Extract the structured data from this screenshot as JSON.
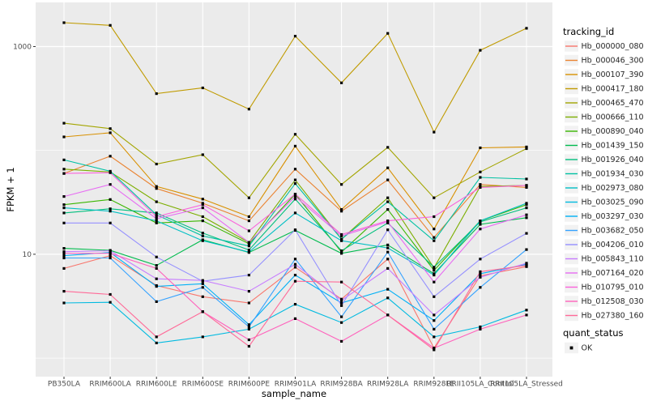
{
  "chart_data": {
    "type": "line",
    "title": "",
    "xlabel": "sample_name",
    "ylabel": "FPKM + 1",
    "values_are": "FPKM + 1 (log10 y scale)",
    "x_categories": [
      "PB350LA",
      "RRIM600LA",
      "RRIM600LE",
      "RRIM600SE",
      "RRIM600PE",
      "RRIM901LA",
      "RRIM928BA",
      "RRIM928LA",
      "RRIM928LE",
      "RRII105LA_Control",
      "RRII105LA_Stressed"
    ],
    "y_axis": {
      "scale": "log10",
      "tick_labels": [
        "1000",
        "10"
      ],
      "tick_values": [
        1000,
        10
      ],
      "minor_values": [
        100,
        1
      ],
      "ylim": [
        0.7,
        2600
      ]
    },
    "panel_bg": "#EBEBEB",
    "grid_color": "#FFFFFF",
    "point_color": "#000000",
    "tick_label_color": "#4D4D4D",
    "legend": {
      "color_title": "tracking_id",
      "shape_title": "quant_status",
      "shape_items": [
        {
          "label": "OK",
          "marker": "black-square-point"
        }
      ],
      "key_bg": "#F2F2F2"
    },
    "series": [
      {
        "name": "Hb_000000_080",
        "color": "#F8766D",
        "values": [
          7.3,
          9.7,
          5.0,
          3.9,
          3.4,
          7.5,
          3.7,
          9.0,
          1.25,
          6.2,
          7.6
        ]
      },
      {
        "name": "Hb_000046_300",
        "color": "#EA8331",
        "values": [
          60,
          88,
          43,
          31,
          21,
          66,
          26,
          52,
          14.5,
          47,
          44
        ]
      },
      {
        "name": "Hb_000107_390",
        "color": "#D89000",
        "values": [
          135,
          148,
          45,
          34,
          23,
          110,
          27,
          68,
          17.5,
          106,
          108
        ]
      },
      {
        "name": "Hb_000417_180",
        "color": "#C09B00",
        "values": [
          1700,
          1600,
          352,
          400,
          250,
          1260,
          447,
          1340,
          150,
          920,
          1500
        ]
      },
      {
        "name": "Hb_000465_470",
        "color": "#A3A500",
        "values": [
          183,
          162,
          74,
          91,
          35,
          143,
          47,
          107,
          35,
          62,
          104
        ]
      },
      {
        "name": "Hb_000666_110",
        "color": "#7CAE00",
        "values": [
          66,
          62,
          32,
          23,
          13,
          52,
          14,
          35,
          7.4,
          45,
          46
        ]
      },
      {
        "name": "Hb_000890_040",
        "color": "#39B600",
        "values": [
          30,
          33.7,
          20,
          21,
          12.6,
          38,
          10.5,
          27,
          7.0,
          21,
          30
        ]
      },
      {
        "name": "Hb_001439_150",
        "color": "#00BB4E",
        "values": [
          11.4,
          10.9,
          7.8,
          13.8,
          10.4,
          17,
          10.2,
          12.3,
          6.5,
          19.4,
          22.5
        ]
      },
      {
        "name": "Hb_001926_040",
        "color": "#00BF7D",
        "values": [
          25,
          27.4,
          25,
          16,
          11,
          34,
          10.8,
          20,
          7.5,
          20.5,
          28
        ]
      },
      {
        "name": "Hb_001934_030",
        "color": "#00C1A3",
        "values": [
          81,
          63,
          24,
          15,
          12,
          48,
          14,
          32,
          13.5,
          55,
          53
        ]
      },
      {
        "name": "Hb_002973_080",
        "color": "#00BFC4",
        "values": [
          28,
          26,
          21,
          13.5,
          10.5,
          25,
          13.5,
          11.5,
          6.3,
          21,
          31
        ]
      },
      {
        "name": "Hb_003025_090",
        "color": "#00BAE0",
        "values": [
          3.4,
          3.45,
          1.4,
          1.6,
          1.9,
          3.3,
          2.2,
          3.8,
          1.6,
          2.0,
          2.9
        ]
      },
      {
        "name": "Hb_003297_030",
        "color": "#00B0F6",
        "values": [
          9.7,
          10.4,
          4.9,
          5.2,
          2.1,
          6.3,
          3.4,
          4.6,
          2.3,
          6.5,
          8.0
        ]
      },
      {
        "name": "Hb_003682_050",
        "color": "#35A2FF",
        "values": [
          9.2,
          9.2,
          3.5,
          4.8,
          2.0,
          9.0,
          2.5,
          10.5,
          1.9,
          4.8,
          11.1
        ]
      },
      {
        "name": "Hb_004206_010",
        "color": "#9590FF",
        "values": [
          20,
          20,
          9.4,
          5.5,
          6.3,
          17.2,
          3.2,
          17.2,
          3.9,
          9.0,
          15.9
        ]
      },
      {
        "name": "Hb_005843_110",
        "color": "#C77CFF",
        "values": [
          10.6,
          10.8,
          5.8,
          5.6,
          4.4,
          8.0,
          3.6,
          7.3,
          2.6,
          6.0,
          8.2
        ]
      },
      {
        "name": "Hb_007164_020",
        "color": "#E76BF3",
        "values": [
          36,
          47,
          22,
          28,
          13,
          36,
          15,
          20.5,
          5.4,
          17.5,
          24
        ]
      },
      {
        "name": "Hb_010795_010",
        "color": "#FA62DB",
        "values": [
          60,
          61,
          23,
          30,
          16.8,
          38,
          15.5,
          21,
          23,
          44,
          46
        ]
      },
      {
        "name": "Hb_012508_030",
        "color": "#FF62BC",
        "values": [
          10.2,
          10.2,
          7.3,
          2.8,
          1.5,
          2.4,
          1.45,
          2.6,
          1.25,
          1.9,
          2.6
        ]
      },
      {
        "name": "Hb_027380_160",
        "color": "#FF6A98",
        "values": [
          4.4,
          4.1,
          1.6,
          2.8,
          1.3,
          5.5,
          5.4,
          2.6,
          1.2,
          6.8,
          7.8
        ]
      }
    ]
  }
}
